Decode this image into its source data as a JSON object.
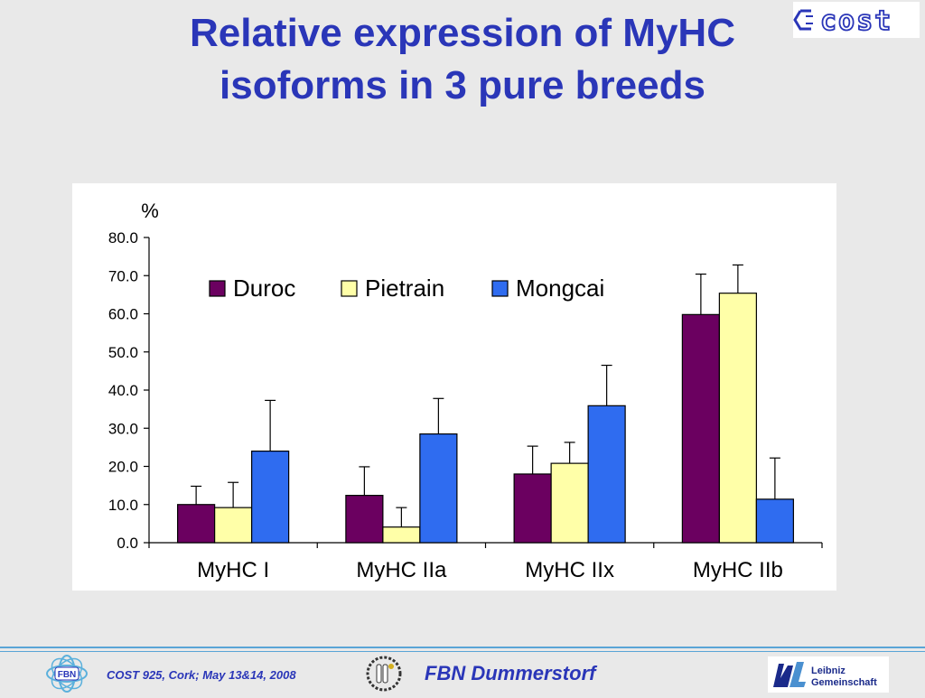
{
  "slide": {
    "title_line1": "Relative expression of MyHC",
    "title_line2": "isoforms in 3 pure breeds",
    "footer_text": "COST 925, Cork; May 13&14, 2008",
    "footer_center": "FBN Dummerstorf",
    "cost_logo_text": "cost",
    "fbn_logo_text": "FBN",
    "leibniz_logo_line1": "Leibniz",
    "leibniz_logo_line2": "Gemeinschaft"
  },
  "colors": {
    "title": "#2a36b8",
    "duroc": "#6b0060",
    "pietrain": "#ffffa8",
    "mongcai": "#2f6cf0"
  },
  "chart_data": {
    "type": "bar",
    "ylabel": "%",
    "ylim": [
      0,
      80
    ],
    "ytick_step": 10,
    "yticks": [
      "0.0",
      "10.0",
      "20.0",
      "30.0",
      "40.0",
      "50.0",
      "60.0",
      "70.0",
      "80.0"
    ],
    "categories": [
      "MyHC I",
      "MyHC IIa",
      "MyHC IIx",
      "MyHC IIb"
    ],
    "legend_position": "top",
    "series": [
      {
        "name": "Duroc",
        "color": "#6b0060",
        "values": [
          10.0,
          12.4,
          18.0,
          59.8
        ],
        "errors": [
          4.8,
          7.5,
          7.3,
          10.6
        ]
      },
      {
        "name": "Pietrain",
        "color": "#ffffa8",
        "values": [
          9.2,
          4.1,
          20.8,
          65.4
        ],
        "errors": [
          6.6,
          5.1,
          5.5,
          7.4
        ]
      },
      {
        "name": "Mongcai",
        "color": "#2f6cf0",
        "values": [
          24.0,
          28.5,
          35.9,
          11.4
        ],
        "errors": [
          13.3,
          9.3,
          10.6,
          10.8
        ]
      }
    ]
  }
}
